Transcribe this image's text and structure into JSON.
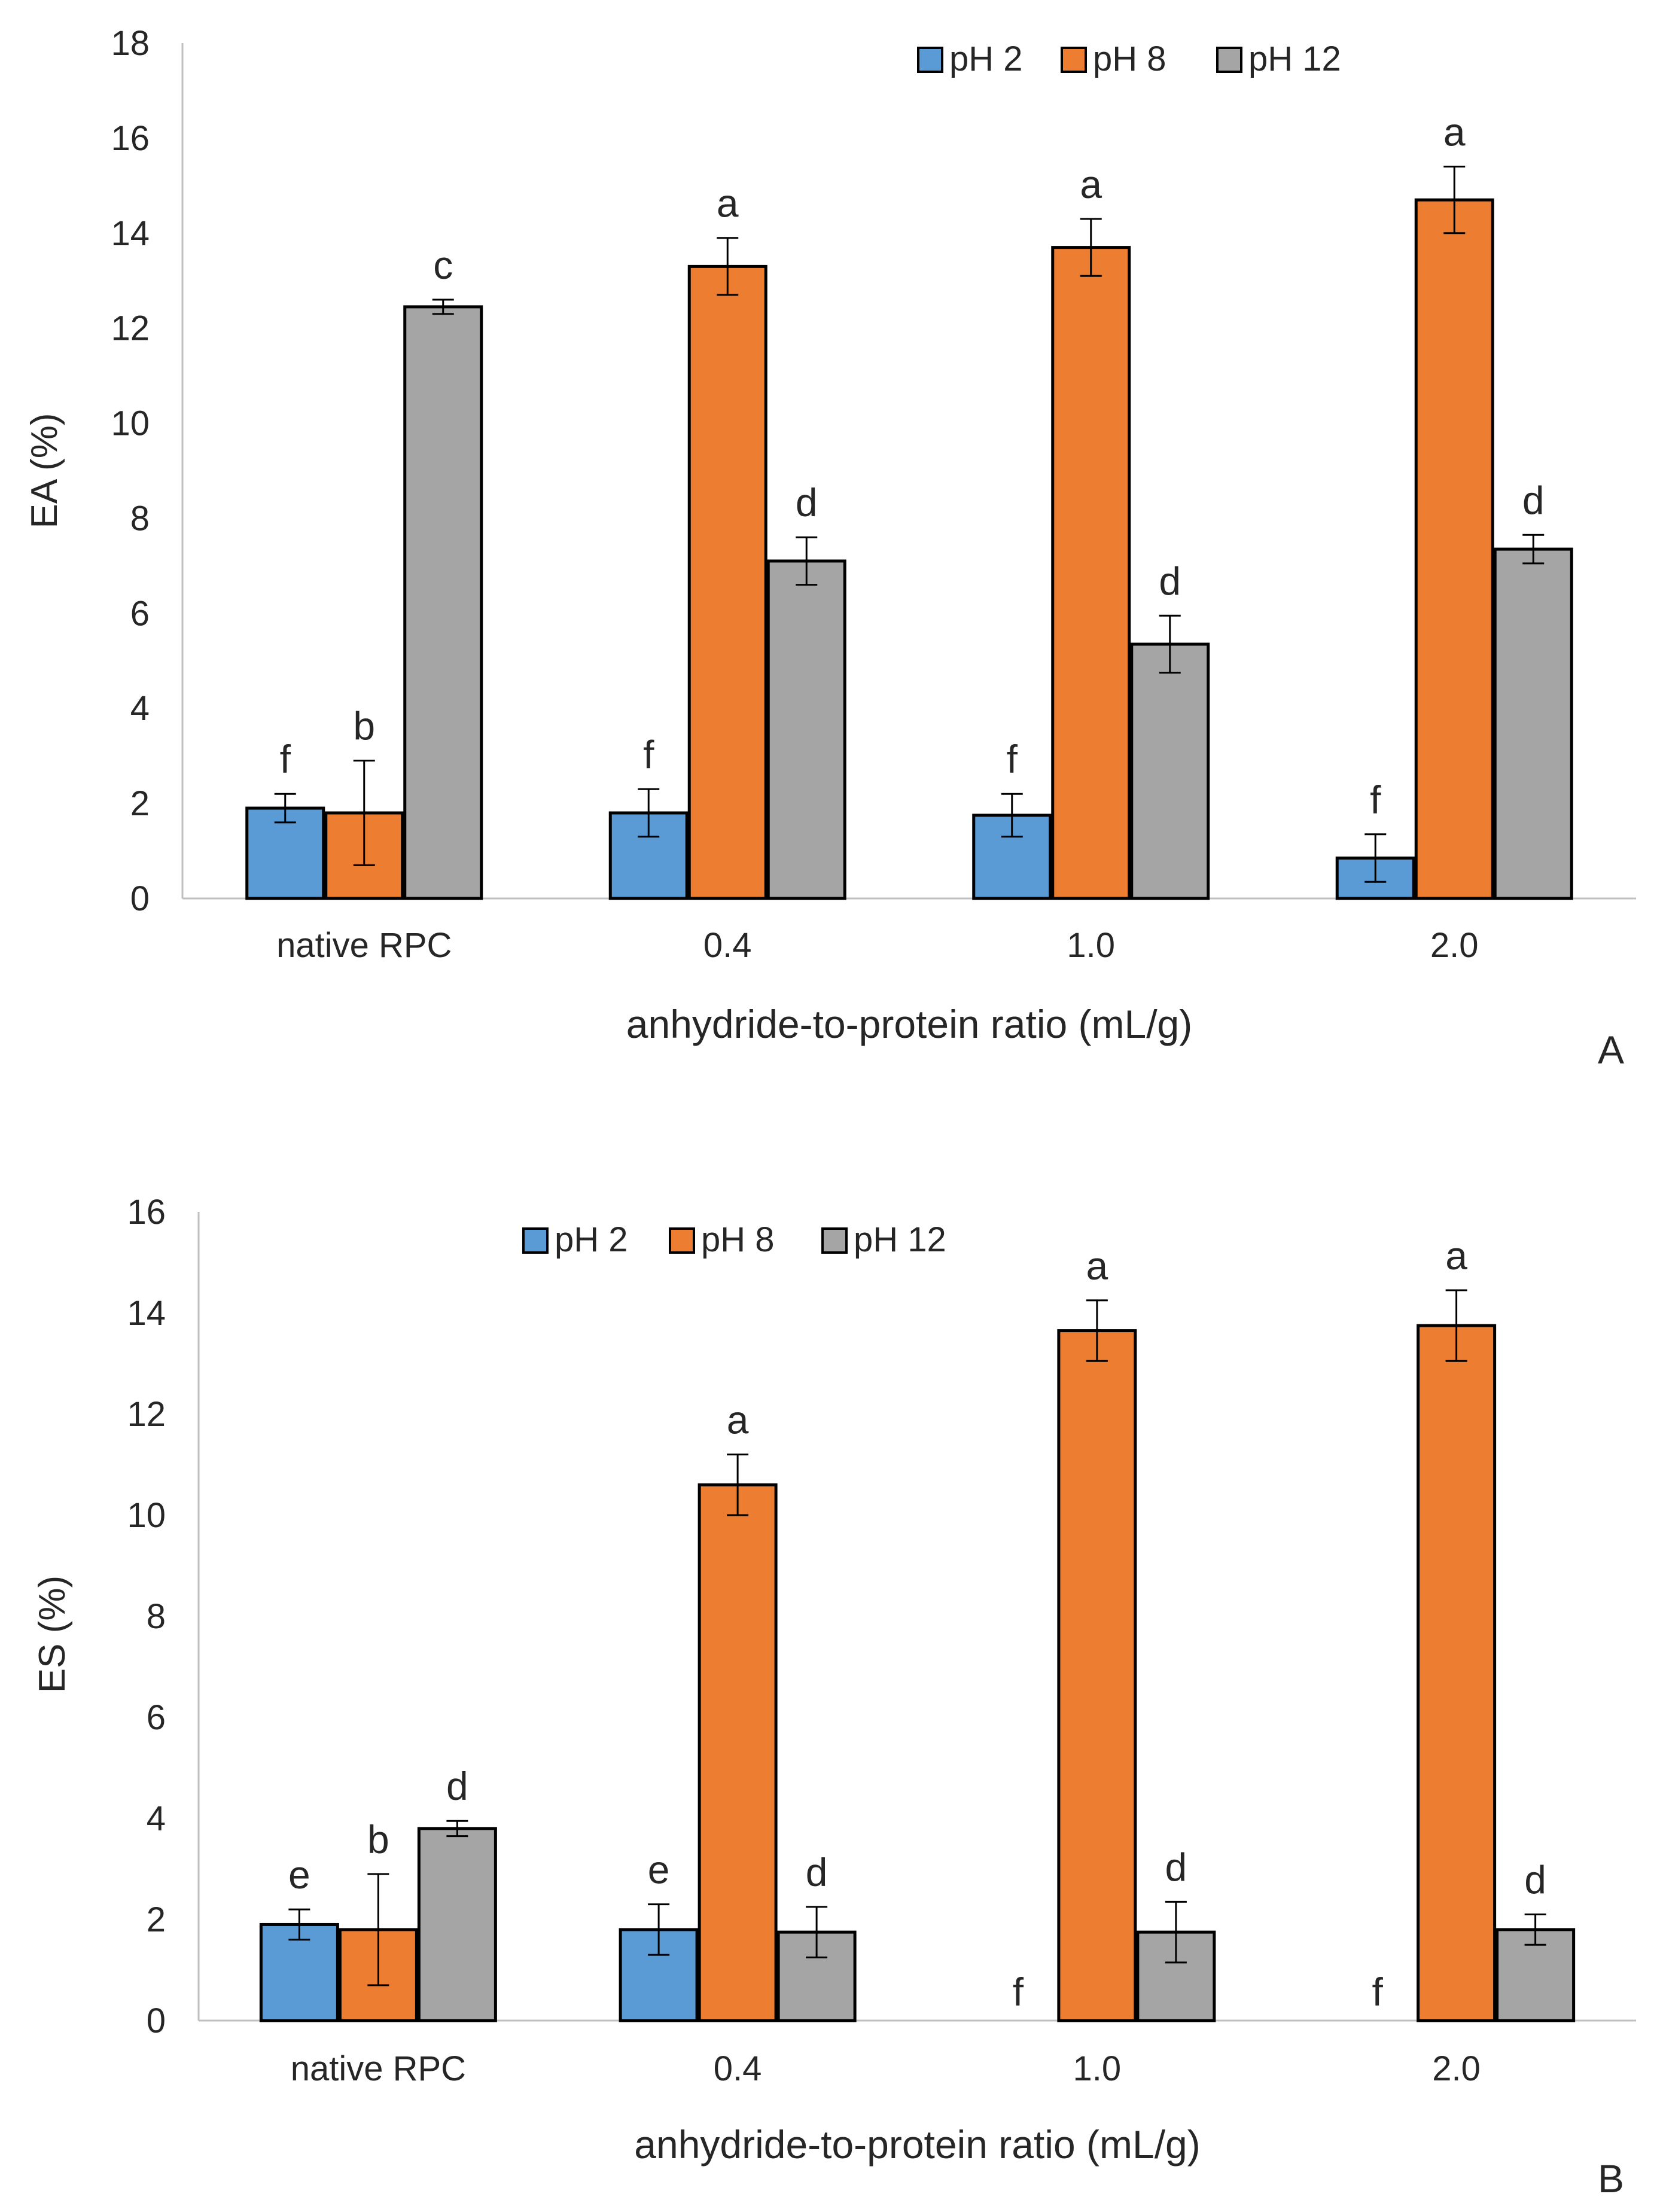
{
  "colors": {
    "ph2": "#5B9BD5",
    "ph8": "#ED7D31",
    "ph12": "#A5A5A5",
    "stroke": "#000000",
    "axis": "#bfbfbf",
    "text": "#262626"
  },
  "chart_data": [
    {
      "type": "bar",
      "panel_label": "A",
      "categories": [
        "native RPC",
        "0.4",
        "1.0",
        "2.0"
      ],
      "series": [
        {
          "name": "pH 2",
          "values": [
            1.9,
            1.8,
            1.75,
            0.85
          ],
          "errors": [
            0.3,
            0.5,
            0.45,
            0.5
          ],
          "letters": [
            "f",
            "f",
            "f",
            "f"
          ]
        },
        {
          "name": "pH 8",
          "values": [
            1.8,
            13.3,
            13.7,
            14.7
          ],
          "errors": [
            1.1,
            0.6,
            0.6,
            0.7
          ],
          "letters": [
            "b",
            "a",
            "a",
            "a"
          ]
        },
        {
          "name": "pH 12",
          "values": [
            12.45,
            7.1,
            5.35,
            7.35
          ],
          "errors": [
            0.15,
            0.5,
            0.6,
            0.3
          ],
          "letters": [
            "c",
            "d",
            "d",
            "d"
          ]
        }
      ],
      "xlabel": "anhydride-to-protein ratio (mL/g)",
      "ylabel": "EA (%)",
      "ylim": [
        0,
        18
      ],
      "yticks": [
        0,
        2,
        4,
        6,
        8,
        10,
        12,
        14,
        16,
        18
      ],
      "legend": "top-right",
      "grid": false
    },
    {
      "type": "bar",
      "panel_label": "B",
      "categories": [
        "native RPC",
        "0.4",
        "1.0",
        "2.0"
      ],
      "series": [
        {
          "name": "pH 2",
          "values": [
            1.9,
            1.8,
            0,
            0
          ],
          "errors": [
            0.3,
            0.5,
            0,
            0
          ],
          "letters": [
            "e",
            "e",
            "f",
            "f"
          ]
        },
        {
          "name": "pH 8",
          "values": [
            1.8,
            10.6,
            13.65,
            13.75
          ],
          "errors": [
            1.1,
            0.6,
            0.6,
            0.7
          ],
          "letters": [
            "b",
            "a",
            "a",
            "a"
          ]
        },
        {
          "name": "pH 12",
          "values": [
            3.8,
            1.75,
            1.75,
            1.8
          ],
          "errors": [
            0.15,
            0.5,
            0.6,
            0.3
          ],
          "letters": [
            "d",
            "d",
            "d",
            "d"
          ]
        }
      ],
      "xlabel": "anhydride-to-protein ratio (mL/g)",
      "ylabel": "ES (%)",
      "ylim": [
        0,
        16
      ],
      "yticks": [
        0,
        2,
        4,
        6,
        8,
        10,
        12,
        14,
        16
      ],
      "legend": "top-center",
      "grid": false
    }
  ]
}
